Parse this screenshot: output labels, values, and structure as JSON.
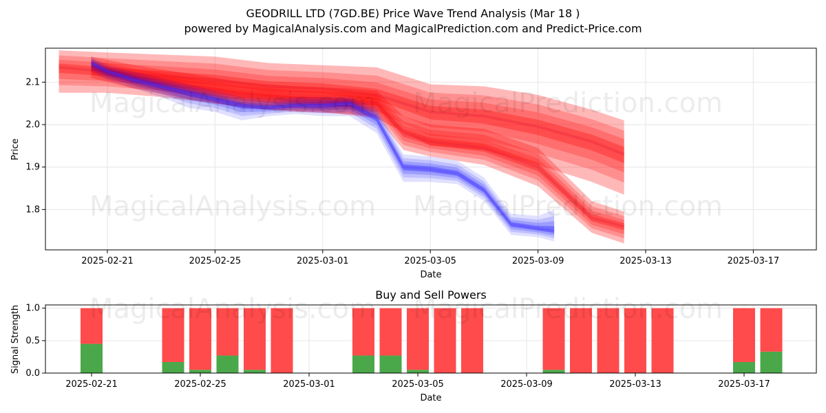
{
  "chart_data": [
    {
      "type": "area",
      "title": "GEODRILL LTD (7GD.BE) Price Wave Trend Analysis (Mar 18 )",
      "subtitle": "powered by MagicalAnalysis.com and MagicalPrediction.com and Predict-Price.com",
      "xlabel": "Date",
      "ylabel": "Price",
      "ylim": [
        1.705,
        2.18
      ],
      "xticks": [
        "2025-02-21",
        "2025-02-25",
        "2025-03-01",
        "2025-03-05",
        "2025-03-09",
        "2025-03-13",
        "2025-03-17"
      ],
      "yticks": [
        1.8,
        1.9,
        2.0,
        2.1
      ],
      "grid": true,
      "series": [
        {
          "name": "Price wave (blue)",
          "color": "#0000ff",
          "x": [
            -0.6,
            0.0,
            1.0,
            2.0,
            3.0,
            4.0,
            5.0,
            6.0,
            7.0,
            8.0,
            9.0,
            10.0,
            11.0,
            12.0,
            13.0,
            14.0,
            15.0,
            16.0,
            16.6
          ],
          "center": [
            2.145,
            2.125,
            2.105,
            2.09,
            2.075,
            2.06,
            2.045,
            2.04,
            2.045,
            2.045,
            2.05,
            2.015,
            1.9,
            1.895,
            1.885,
            1.845,
            1.765,
            1.755,
            1.75
          ],
          "upper": [
            2.16,
            2.14,
            2.125,
            2.11,
            2.095,
            2.08,
            2.065,
            2.06,
            2.065,
            2.065,
            2.065,
            2.04,
            1.93,
            1.925,
            1.915,
            1.875,
            1.79,
            1.785,
            1.8
          ],
          "lower": [
            2.125,
            2.105,
            2.085,
            2.065,
            2.04,
            2.03,
            2.01,
            2.02,
            2.025,
            2.02,
            2.02,
            1.98,
            1.865,
            1.865,
            1.86,
            1.82,
            1.74,
            1.735,
            1.725
          ]
        },
        {
          "name": "Trend band (red)",
          "color": "#ff0000",
          "x": [
            -1.8,
            0.0,
            2.0,
            4.0,
            6.0,
            8.0,
            10.0,
            12.0,
            14.0,
            16.0,
            18.0,
            19.2
          ],
          "center": [
            2.135,
            2.125,
            2.115,
            2.105,
            2.09,
            2.085,
            2.07,
            2.03,
            2.02,
            1.995,
            1.96,
            1.93
          ],
          "upper": [
            2.175,
            2.17,
            2.165,
            2.16,
            2.145,
            2.14,
            2.135,
            2.095,
            2.09,
            2.07,
            2.035,
            2.01
          ],
          "lower": [
            2.075,
            2.075,
            2.065,
            2.05,
            2.035,
            2.03,
            2.015,
            1.95,
            1.94,
            1.905,
            1.865,
            1.835
          ]
        },
        {
          "name": "Trend band 2 (red)",
          "color": "#ff0000",
          "x": [
            -0.6,
            1.0,
            3.0,
            5.0,
            7.0,
            9.0,
            10.0,
            11.0,
            12.0,
            14.0,
            16.0,
            18.0,
            19.2
          ],
          "center": [
            2.135,
            2.11,
            2.09,
            2.07,
            2.06,
            2.055,
            2.05,
            1.98,
            1.96,
            1.945,
            1.9,
            1.78,
            1.76
          ],
          "upper": [
            2.16,
            2.14,
            2.12,
            2.1,
            2.09,
            2.085,
            2.08,
            2.02,
            2.0,
            1.99,
            1.945,
            1.82,
            1.795
          ],
          "lower": [
            2.11,
            2.085,
            2.06,
            2.04,
            2.03,
            2.025,
            2.02,
            1.94,
            1.925,
            1.905,
            1.855,
            1.745,
            1.72
          ]
        }
      ],
      "xrange": [
        -2.25,
        19.55
      ]
    },
    {
      "type": "bar",
      "title": "Buy and Sell Powers",
      "xlabel": "Date",
      "ylabel": "Signal Strength",
      "ylim": [
        0,
        1.05
      ],
      "yticks": [
        0.0,
        0.5,
        1.0
      ],
      "xticks": [
        "2025-02-21",
        "2025-02-25",
        "2025-03-01",
        "2025-03-05",
        "2025-03-09",
        "2025-03-13",
        "2025-03-17"
      ],
      "grid": true,
      "buy_color": "#4aa84a",
      "sell_color": "#ff4b4b",
      "bars": [
        {
          "date": "2025-02-21",
          "buy": 0.45,
          "sell": 0.55
        },
        {
          "date": "2025-02-24",
          "buy": 0.17,
          "sell": 0.83
        },
        {
          "date": "2025-02-25",
          "buy": 0.05,
          "sell": 0.95
        },
        {
          "date": "2025-02-26",
          "buy": 0.27,
          "sell": 0.73
        },
        {
          "date": "2025-02-27",
          "buy": 0.05,
          "sell": 0.95
        },
        {
          "date": "2025-02-28",
          "buy": 0.0,
          "sell": 1.0
        },
        {
          "date": "2025-03-03",
          "buy": 0.27,
          "sell": 0.73
        },
        {
          "date": "2025-03-04",
          "buy": 0.27,
          "sell": 0.73
        },
        {
          "date": "2025-03-05",
          "buy": 0.05,
          "sell": 0.95
        },
        {
          "date": "2025-03-06",
          "buy": 0.0,
          "sell": 1.0
        },
        {
          "date": "2025-03-07",
          "buy": 0.0,
          "sell": 1.0
        },
        {
          "date": "2025-03-10",
          "buy": 0.05,
          "sell": 0.95
        },
        {
          "date": "2025-03-11",
          "buy": 0.0,
          "sell": 1.0
        },
        {
          "date": "2025-03-12",
          "buy": 0.0,
          "sell": 1.0
        },
        {
          "date": "2025-03-13",
          "buy": 0.0,
          "sell": 1.0
        },
        {
          "date": "2025-03-14",
          "buy": 0.0,
          "sell": 1.0
        },
        {
          "date": "2025-03-17",
          "buy": 0.17,
          "sell": 0.83
        },
        {
          "date": "2025-03-18",
          "buy": 0.33,
          "sell": 0.67
        }
      ]
    }
  ],
  "watermarks": {
    "top_left_upper": "MagicalAnalysis.com",
    "top_right_upper": "MagicalPrediction.com",
    "top_left_lower": "MagicalAnalysis.com",
    "top_right_lower": "MagicalPrediction.com",
    "bottom_left": "MagicalAnalysis.com",
    "bottom_right": "MagicalPrediction.com"
  }
}
